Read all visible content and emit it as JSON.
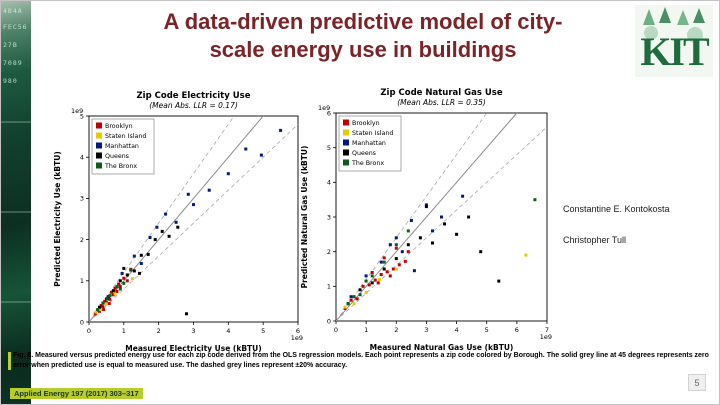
{
  "slide": {
    "title_lines": [
      "A data-driven predictive model of city-",
      "scale energy use in buildings"
    ],
    "authors": [
      "Constantine E. Kontokosta",
      "Christopher Tull"
    ],
    "caption": "Fig. 8. Measured versus predicted energy use for each zip code derived from the OLS regression models. Each point represents a zip code colored by Borough. The solid grey line at 45 degrees represents zero error when predicted use is equal to measured use. The dashed grey lines represent ±20% accuracy.",
    "citation": "Applied Energy 197 (2017) 303–317",
    "page_number": "5",
    "logo_text": "KIT",
    "strip_lines": [
      "4B4A",
      "FEC56",
      "27B",
      "7089",
      "980"
    ]
  },
  "chart_data": [
    {
      "type": "scatter",
      "title": "Zip Code Electricity Use",
      "subtitle": "(Mean Abs. LLR = 0.17)",
      "xlabel": "Measured Electricity Use (kBTU)",
      "ylabel": "Predicted Electricity Use (kBTU)",
      "scale_label": "1e9",
      "xlim": [
        0,
        6
      ],
      "ylim": [
        0,
        5
      ],
      "xticks": [
        0,
        1,
        2,
        3,
        4,
        5,
        6
      ],
      "yticks": [
        0,
        1,
        2,
        3,
        4,
        5
      ],
      "error_band_pct": 20,
      "legend_position": "upper-left",
      "series": [
        {
          "name": "Brooklyn",
          "color": "#c00000",
          "points": [
            [
              0.18,
              0.2
            ],
            [
              0.25,
              0.28
            ],
            [
              0.3,
              0.26
            ],
            [
              0.35,
              0.4
            ],
            [
              0.4,
              0.37
            ],
            [
              0.45,
              0.5
            ],
            [
              0.5,
              0.47
            ],
            [
              0.55,
              0.62
            ],
            [
              0.6,
              0.55
            ],
            [
              0.65,
              0.72
            ],
            [
              0.7,
              0.66
            ],
            [
              0.75,
              0.82
            ],
            [
              0.8,
              0.74
            ],
            [
              0.85,
              0.92
            ],
            [
              0.9,
              0.86
            ],
            [
              1.0,
              1.06
            ],
            [
              1.1,
              1.0
            ],
            [
              1.2,
              1.28
            ],
            [
              0.42,
              0.3
            ],
            [
              0.58,
              0.45
            ]
          ]
        },
        {
          "name": "Staten Island",
          "color": "#e3cb00",
          "points": [
            [
              0.2,
              0.24
            ],
            [
              0.33,
              0.3
            ],
            [
              0.5,
              0.44
            ],
            [
              0.75,
              0.68
            ],
            [
              1.25,
              1.05
            ]
          ]
        },
        {
          "name": "Manhattan",
          "color": "#001a7d",
          "points": [
            [
              0.55,
              0.6
            ],
            [
              0.95,
              1.18
            ],
            [
              1.5,
              1.42
            ],
            [
              1.95,
              2.3
            ],
            [
              2.5,
              2.42
            ],
            [
              3.0,
              2.85
            ],
            [
              3.45,
              3.2
            ],
            [
              4.0,
              3.6
            ],
            [
              4.5,
              4.2
            ],
            [
              4.95,
              4.05
            ],
            [
              5.5,
              4.65
            ],
            [
              2.2,
              2.62
            ],
            [
              1.75,
              2.05
            ],
            [
              2.85,
              3.1
            ],
            [
              1.3,
              1.6
            ]
          ]
        },
        {
          "name": "Queens",
          "color": "#000000",
          "points": [
            [
              0.3,
              0.36
            ],
            [
              0.5,
              0.56
            ],
            [
              0.7,
              0.76
            ],
            [
              0.9,
              1.0
            ],
            [
              1.1,
              1.14
            ],
            [
              1.3,
              1.24
            ],
            [
              1.5,
              1.62
            ],
            [
              1.7,
              1.64
            ],
            [
              1.9,
              2.0
            ],
            [
              2.1,
              2.2
            ],
            [
              2.3,
              2.08
            ],
            [
              1.0,
              1.3
            ],
            [
              1.45,
              1.18
            ],
            [
              2.55,
              2.3
            ],
            [
              2.8,
              0.2
            ]
          ]
        },
        {
          "name": "The Bronx",
          "color": "#0a5d1d",
          "points": [
            [
              0.25,
              0.3
            ],
            [
              0.4,
              0.46
            ],
            [
              0.6,
              0.64
            ],
            [
              0.8,
              0.86
            ],
            [
              1.0,
              0.94
            ],
            [
              1.2,
              1.26
            ],
            [
              0.52,
              0.56
            ],
            [
              0.9,
              0.8
            ]
          ]
        }
      ]
    },
    {
      "type": "scatter",
      "title": "Zip Code Natural Gas Use",
      "subtitle": "(Mean Abs. LLR = 0.35)",
      "xlabel": "Measured Natural Gas Use (kBTU)",
      "ylabel": "Predicted Natural Gas Use (kBTU)",
      "scale_label": "1e9",
      "xlim": [
        0,
        7
      ],
      "ylim": [
        0,
        6
      ],
      "xticks": [
        0,
        1,
        2,
        3,
        4,
        5,
        6,
        7
      ],
      "yticks": [
        0,
        1,
        2,
        3,
        4,
        5,
        6
      ],
      "error_band_pct": 20,
      "legend_position": "upper-left",
      "series": [
        {
          "name": "Brooklyn",
          "color": "#c00000",
          "points": [
            [
              0.3,
              0.36
            ],
            [
              0.5,
              0.6
            ],
            [
              0.7,
              0.64
            ],
            [
              0.9,
              1.0
            ],
            [
              1.1,
              1.04
            ],
            [
              1.3,
              1.18
            ],
            [
              1.5,
              1.34
            ],
            [
              1.7,
              1.42
            ],
            [
              1.9,
              1.5
            ],
            [
              2.1,
              1.62
            ],
            [
              2.3,
              1.72
            ],
            [
              1.2,
              1.4
            ],
            [
              1.6,
              1.82
            ],
            [
              2.0,
              2.1
            ],
            [
              2.4,
              2.0
            ],
            [
              1.4,
              1.1
            ],
            [
              1.8,
              1.3
            ]
          ]
        },
        {
          "name": "Staten Island",
          "color": "#e3cb00",
          "points": [
            [
              0.3,
              0.4
            ],
            [
              0.6,
              0.5
            ],
            [
              1.0,
              0.82
            ],
            [
              1.45,
              1.2
            ],
            [
              2.0,
              1.5
            ],
            [
              6.3,
              1.9
            ]
          ]
        },
        {
          "name": "Manhattan",
          "color": "#001a7d",
          "points": [
            [
              0.5,
              0.7
            ],
            [
              1.0,
              1.3
            ],
            [
              1.5,
              1.7
            ],
            [
              2.0,
              2.4
            ],
            [
              2.5,
              2.9
            ],
            [
              3.0,
              3.35
            ],
            [
              3.5,
              3.0
            ],
            [
              2.2,
              2.0
            ],
            [
              1.8,
              2.2
            ],
            [
              4.2,
              3.6
            ],
            [
              2.6,
              1.45
            ],
            [
              3.2,
              2.6
            ]
          ]
        },
        {
          "name": "Queens",
          "color": "#000000",
          "points": [
            [
              0.4,
              0.5
            ],
            [
              0.8,
              0.9
            ],
            [
              1.2,
              1.1
            ],
            [
              1.6,
              1.5
            ],
            [
              2.0,
              1.8
            ],
            [
              2.4,
              2.2
            ],
            [
              2.8,
              2.4
            ],
            [
              3.2,
              2.25
            ],
            [
              3.6,
              2.8
            ],
            [
              4.0,
              2.5
            ],
            [
              4.4,
              3.0
            ],
            [
              5.4,
              1.15
            ],
            [
              3.0,
              3.3
            ],
            [
              4.8,
              2.0
            ]
          ]
        },
        {
          "name": "The Bronx",
          "color": "#0a5d1d",
          "points": [
            [
              0.4,
              0.5
            ],
            [
              0.8,
              0.76
            ],
            [
              1.2,
              1.3
            ],
            [
              1.6,
              1.7
            ],
            [
              2.0,
              2.2
            ],
            [
              2.4,
              2.6
            ],
            [
              0.6,
              0.7
            ],
            [
              6.6,
              3.5
            ],
            [
              1.0,
              1.15
            ]
          ]
        }
      ]
    }
  ]
}
